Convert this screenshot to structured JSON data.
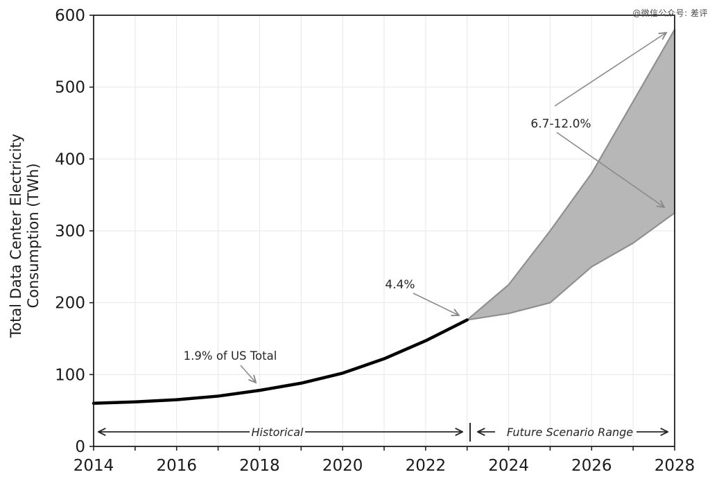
{
  "watermark": "@微信公众号: 差评",
  "chart_data": {
    "type": "area",
    "title": "",
    "xlabel": "",
    "ylabel_lines": [
      "Total Data Center Electricity",
      "Consumption (TWh)"
    ],
    "xlim": [
      2014,
      2028
    ],
    "ylim": [
      0,
      600
    ],
    "grid": true,
    "x_tick_labels": [
      "2014",
      "2016",
      "2018",
      "2020",
      "2022",
      "2024",
      "2026",
      "2028"
    ],
    "y_tick_labels": [
      "0",
      "100",
      "200",
      "300",
      "400",
      "500",
      "600"
    ],
    "series": [
      {
        "name": "Historical",
        "type": "line",
        "color": "#000000",
        "x": [
          2014,
          2015,
          2016,
          2017,
          2018,
          2019,
          2020,
          2021,
          2022,
          2023
        ],
        "values": [
          60,
          62,
          65,
          70,
          78,
          88,
          102,
          122,
          147,
          176
        ]
      },
      {
        "name": "Future Scenario Range",
        "type": "band",
        "fill": "#b7b7b7",
        "edge": "#8f8f8f",
        "x": [
          2023,
          2024,
          2025,
          2026,
          2027,
          2028
        ],
        "high": [
          176,
          225,
          300,
          380,
          480,
          580
        ],
        "low": [
          176,
          185,
          200,
          250,
          283,
          325
        ]
      }
    ],
    "annotations": [
      {
        "id": "us-share-2018",
        "text": "1.9% of US Total",
        "target": {
          "x": 2018,
          "y": 78
        }
      },
      {
        "id": "us-share-2023",
        "text": "4.4%",
        "target": {
          "x": 2023,
          "y": 176
        }
      },
      {
        "id": "us-share-2028",
        "text": "6.7-12.0%",
        "targets": [
          {
            "x": 2028,
            "y": 580
          },
          {
            "x": 2028,
            "y": 325
          }
        ]
      },
      {
        "id": "historical-span",
        "text": "Historical",
        "span": [
          2014,
          2023
        ]
      },
      {
        "id": "future-span",
        "text": "Future Scenario Range",
        "span": [
          2023,
          2028
        ]
      }
    ]
  }
}
